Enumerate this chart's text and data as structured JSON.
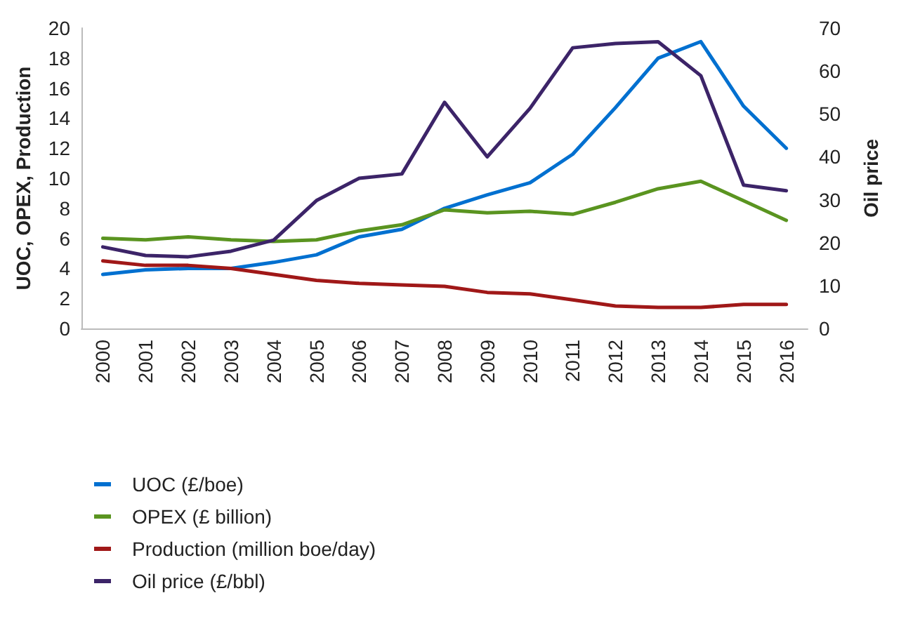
{
  "chart_data": {
    "type": "line",
    "ylabel": "UOC, OPEX, Production",
    "y2label": "Oil price",
    "categories": [
      "2000",
      "2001",
      "2002",
      "2003",
      "2004",
      "2005",
      "2006",
      "2007",
      "2008",
      "2009",
      "2010",
      "2011",
      "2012",
      "2013",
      "2014",
      "2015",
      "2016"
    ],
    "series": [
      {
        "name": "UOC (£/boe)",
        "color": "#0070d0",
        "values": [
          3.6,
          3.9,
          4.0,
          4.0,
          4.4,
          4.9,
          6.1,
          6.6,
          8.0,
          8.9,
          9.7,
          11.6,
          14.7,
          18.0,
          19.1,
          14.8,
          12.0
        ]
      },
      {
        "name": "OPEX (£ billion)",
        "color": "#5a9420",
        "values": [
          6.0,
          5.9,
          6.1,
          5.9,
          5.8,
          5.9,
          6.5,
          6.9,
          7.9,
          7.7,
          7.8,
          7.6,
          8.4,
          9.3,
          9.8,
          8.5,
          7.2
        ]
      },
      {
        "name": "Production (million boe/day)",
        "color": "#a01818",
        "values": [
          4.5,
          4.2,
          4.2,
          4.0,
          3.6,
          3.2,
          3.0,
          2.9,
          2.8,
          2.4,
          2.3,
          1.9,
          1.5,
          1.4,
          1.4,
          1.6,
          1.6
        ]
      },
      {
        "name": "Oil price (£/bbl)",
        "color": "#3c2468",
        "axis": "y2",
        "values": [
          19,
          17,
          16.7,
          18,
          20.6,
          29.8,
          35,
          36,
          52.7,
          40,
          51.3,
          65.4,
          66.4,
          66.8,
          58.9,
          33.4,
          32.1
        ]
      }
    ],
    "ylim": [
      0,
      20
    ],
    "yticks": [
      0,
      2,
      4,
      6,
      8,
      10,
      12,
      14,
      16,
      18,
      20
    ],
    "y2lim": [
      0,
      70
    ],
    "y2ticks": [
      0,
      10,
      20,
      30,
      40,
      50,
      60,
      70
    ],
    "grid": false,
    "legend": "bottom left",
    "marker": "none",
    "line_style": "solid"
  }
}
